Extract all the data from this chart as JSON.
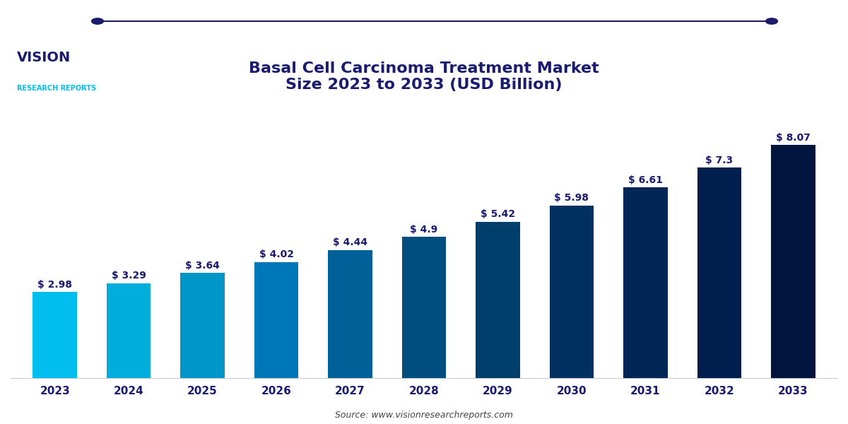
{
  "years": [
    "2023",
    "2024",
    "2025",
    "2026",
    "2027",
    "2028",
    "2029",
    "2030",
    "2031",
    "2032",
    "2033"
  ],
  "values": [
    2.98,
    3.29,
    3.64,
    4.02,
    4.44,
    4.9,
    5.42,
    5.98,
    6.61,
    7.3,
    8.07
  ],
  "bar_colors": [
    "#00BFEF",
    "#00AEDB",
    "#0096C7",
    "#0077B6",
    "#006199",
    "#004E80",
    "#003F6B",
    "#003060",
    "#002655",
    "#001E4E",
    "#001440"
  ],
  "labels": [
    "$ 2.98",
    "$ 3.29",
    "$ 3.64",
    "$ 4.02",
    "$ 4.44",
    "$ 4.9",
    "$ 5.42",
    "$ 5.98",
    "$ 6.61",
    "$ 7.3",
    "$ 8.07"
  ],
  "title_line1": "Basal Cell Carcinoma Treatment Market",
  "title_line2": "Size 2023 to 2033 (USD Billion)",
  "source_text": "Source: www.visionresearchreports.com",
  "title_color": "#1a1a6e",
  "label_color": "#1a1a6e",
  "tick_color": "#1a1a6e",
  "background_color": "#ffffff",
  "ylim": [
    0,
    9.5
  ],
  "bar_width": 0.6
}
